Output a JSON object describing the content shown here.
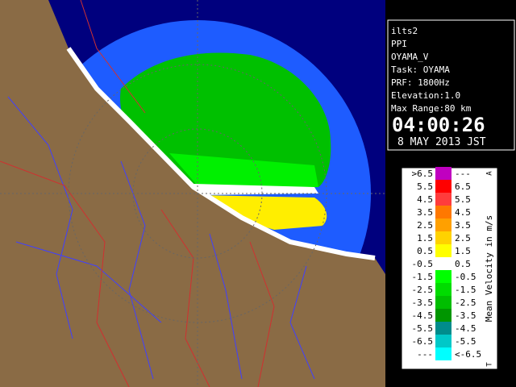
{
  "info": {
    "lines": [
      "ilts2",
      "PPI",
      "OYAMA_V",
      "Task: OYAMA",
      "PRF: 1800Hz",
      "Elevation:1.0",
      "Max Range:80 km"
    ],
    "time": "04:00:26",
    "date": "8 MAY 2013 JST"
  },
  "legend": {
    "title": "Mean Velocity in m/s",
    "top_mark": "A",
    "bottom_mark": "T",
    "rows": [
      {
        "low": ">6.5",
        "high": "---",
        "color": "#c000c0"
      },
      {
        "low": "5.5",
        "high": "6.5",
        "color": "#ff0000"
      },
      {
        "low": "4.5",
        "high": "5.5",
        "color": "#ff3c3c"
      },
      {
        "low": "3.5",
        "high": "4.5",
        "color": "#ff7800"
      },
      {
        "low": "2.5",
        "high": "3.5",
        "color": "#ffa000"
      },
      {
        "low": "1.5",
        "high": "2.5",
        "color": "#ffd200"
      },
      {
        "low": "0.5",
        "high": "1.5",
        "color": "#ffff00"
      },
      {
        "low": "-0.5",
        "high": "0.5",
        "color": "#ffffff"
      },
      {
        "low": "-1.5",
        "high": "-0.5",
        "color": "#00ff00"
      },
      {
        "low": "-2.5",
        "high": "-1.5",
        "color": "#00dc00"
      },
      {
        "low": "-3.5",
        "high": "-2.5",
        "color": "#00be00"
      },
      {
        "low": "-4.5",
        "high": "-3.5",
        "color": "#009600"
      },
      {
        "low": "-5.5",
        "high": "-4.5",
        "color": "#008c8c"
      },
      {
        "low": "-6.5",
        "high": "-5.5",
        "color": "#00c8c8"
      },
      {
        "low": "---",
        "high": "<-6.5",
        "color": "#00ffff"
      }
    ]
  }
}
